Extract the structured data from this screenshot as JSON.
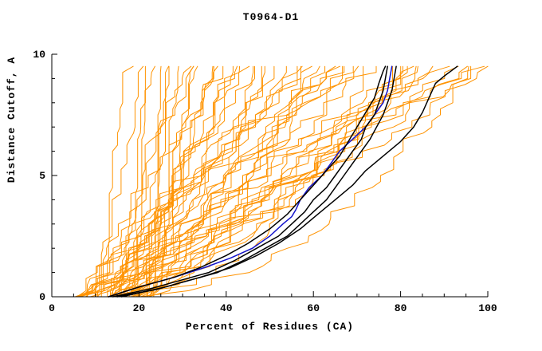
{
  "page": {
    "background": "#ffffff"
  },
  "chart_data": {
    "type": "line",
    "title": "T0964-D1",
    "xlabel": "Percent of Residues (CA)",
    "ylabel": "Distance Cutoff, A",
    "xlim": [
      0,
      100
    ],
    "ylim": [
      0,
      10
    ],
    "x_major_ticks": [
      0,
      20,
      40,
      60,
      80,
      100
    ],
    "x_minor_step": 5,
    "y_major_ticks": [
      0,
      5,
      10
    ],
    "y_minor_step": 1,
    "grid": false,
    "legend": "none",
    "colors": {
      "ensemble": "#ff9300",
      "highlight": "#1414cc",
      "reference": "#000000",
      "axis": "#000000"
    },
    "series": [
      {
        "name": "blue-model",
        "color_role": "highlight",
        "points": [
          [
            13,
            0
          ],
          [
            20,
            0.4
          ],
          [
            28,
            0.8
          ],
          [
            35,
            1.2
          ],
          [
            41,
            1.6
          ],
          [
            46,
            2
          ],
          [
            50,
            2.5
          ],
          [
            53,
            3
          ],
          [
            55,
            3.3
          ],
          [
            56,
            3.6
          ],
          [
            57,
            4
          ],
          [
            59,
            4.5
          ],
          [
            62,
            5
          ],
          [
            64,
            5.5
          ],
          [
            66,
            6
          ],
          [
            69,
            6.5
          ],
          [
            72,
            7
          ],
          [
            74,
            7.5
          ],
          [
            76,
            8
          ],
          [
            77,
            8.5
          ],
          [
            77.5,
            9
          ],
          [
            78,
            9.5
          ]
        ]
      },
      {
        "name": "black-model-1",
        "color_role": "reference",
        "points": [
          [
            14,
            0
          ],
          [
            22,
            0.3
          ],
          [
            30,
            0.7
          ],
          [
            36,
            1
          ],
          [
            42,
            1.5
          ],
          [
            47,
            2
          ],
          [
            52,
            2.5
          ],
          [
            55,
            3
          ],
          [
            58,
            3.5
          ],
          [
            60,
            4
          ],
          [
            63,
            4.5
          ],
          [
            65,
            5
          ],
          [
            67,
            5.5
          ],
          [
            69,
            6
          ],
          [
            71,
            6.5
          ],
          [
            72,
            7
          ],
          [
            74,
            7.5
          ],
          [
            75,
            8
          ],
          [
            76,
            8.5
          ],
          [
            76.5,
            9
          ],
          [
            77,
            9.5
          ]
        ]
      },
      {
        "name": "black-model-2",
        "color_role": "reference",
        "points": [
          [
            15,
            0
          ],
          [
            24,
            0.3
          ],
          [
            32,
            0.7
          ],
          [
            38,
            1
          ],
          [
            44,
            1.5
          ],
          [
            49,
            2
          ],
          [
            54,
            2.5
          ],
          [
            57,
            3
          ],
          [
            60,
            3.5
          ],
          [
            63,
            4
          ],
          [
            65,
            4.5
          ],
          [
            67,
            5
          ],
          [
            69,
            5.5
          ],
          [
            71,
            6
          ],
          [
            73,
            6.5
          ],
          [
            74.5,
            7
          ],
          [
            76,
            7.5
          ],
          [
            77,
            8
          ],
          [
            78,
            8.5
          ],
          [
            78.5,
            9
          ],
          [
            79,
            9.5
          ]
        ]
      },
      {
        "name": "black-model-3",
        "color_role": "reference",
        "points": [
          [
            13,
            0
          ],
          [
            20,
            0.4
          ],
          [
            28,
            0.8
          ],
          [
            34,
            1.2
          ],
          [
            40,
            1.7
          ],
          [
            45,
            2.2
          ],
          [
            50,
            2.8
          ],
          [
            54,
            3.4
          ],
          [
            57,
            4
          ],
          [
            60,
            4.6
          ],
          [
            63,
            5.2
          ],
          [
            66,
            5.8
          ],
          [
            68,
            6.4
          ],
          [
            70,
            7
          ],
          [
            72,
            7.6
          ],
          [
            74,
            8.2
          ],
          [
            75,
            8.8
          ],
          [
            76,
            9.3
          ],
          [
            76.5,
            9.5
          ]
        ]
      },
      {
        "name": "black-model-4",
        "color_role": "reference",
        "points": [
          [
            16,
            0
          ],
          [
            26,
            0.4
          ],
          [
            34,
            0.8
          ],
          [
            41,
            1.2
          ],
          [
            47,
            1.7
          ],
          [
            52,
            2.2
          ],
          [
            57,
            2.8
          ],
          [
            61,
            3.4
          ],
          [
            65,
            4
          ],
          [
            69,
            4.6
          ],
          [
            72,
            5.2
          ],
          [
            76,
            5.8
          ],
          [
            80,
            6.4
          ],
          [
            83,
            7
          ],
          [
            85,
            7.6
          ],
          [
            86.5,
            8.2
          ],
          [
            88,
            8.8
          ],
          [
            90,
            9.1
          ],
          [
            93,
            9.5
          ]
        ]
      }
    ],
    "ensemble": {
      "name": "server-models",
      "count": 55,
      "seed": 1234567,
      "x_start_range": [
        5,
        23
      ],
      "x_end_range": [
        16,
        98
      ],
      "y_top": 9.5,
      "y_step": 0.25
    }
  }
}
